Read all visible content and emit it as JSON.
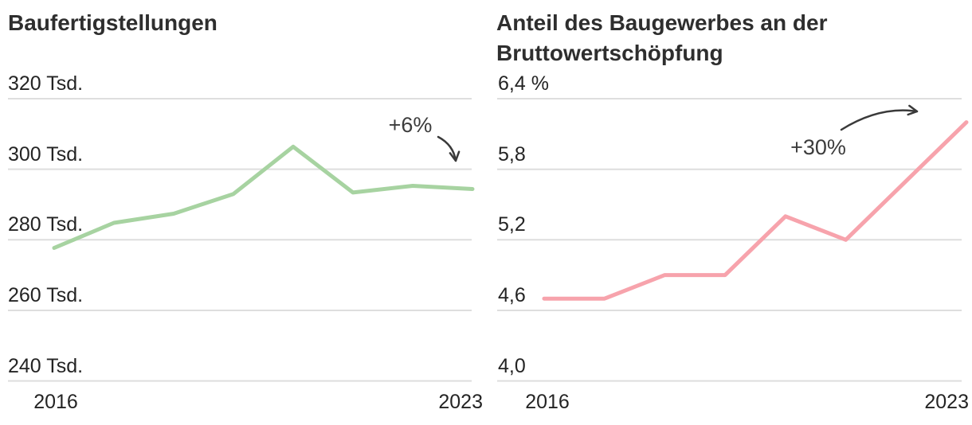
{
  "chart_data": [
    {
      "type": "line",
      "title": "Baufertigstellungen",
      "title_lines": [
        "Baufertigstellungen"
      ],
      "x": [
        2016,
        2017,
        2018,
        2019,
        2020,
        2021,
        2022,
        2023
      ],
      "values": [
        277.7,
        284.8,
        287.4,
        293.0,
        306.4,
        293.4,
        295.3,
        294.4
      ],
      "unit": "Tsd.",
      "ylim": [
        240,
        320
      ],
      "yticks": [
        {
          "value": 320,
          "label": "320 Tsd."
        },
        {
          "value": 300,
          "label": "300 Tsd."
        },
        {
          "value": 280,
          "label": "280 Tsd."
        },
        {
          "value": 260,
          "label": "260 Tsd."
        },
        {
          "value": 240,
          "label": "240 Tsd."
        }
      ],
      "xticks": [
        {
          "value": 2016,
          "label": "2016"
        },
        {
          "value": 2023,
          "label": "2023"
        }
      ],
      "annotation": "+6%",
      "line_color": "#a7d3a1",
      "grid": true,
      "legend": null
    },
    {
      "type": "line",
      "title": "Anteil des Baugewerbes an der Bruttowertschöpfung",
      "title_lines": [
        "Anteil des Baugewerbes an der",
        "Bruttowertschöpfung"
      ],
      "x": [
        2016,
        2017,
        2018,
        2019,
        2020,
        2021,
        2022,
        2023
      ],
      "values": [
        4.7,
        4.7,
        4.9,
        4.9,
        5.4,
        5.2,
        5.7,
        6.2
      ],
      "unit": "%",
      "ylim": [
        4.0,
        6.4
      ],
      "yticks": [
        {
          "value": 6.4,
          "label": "6,4 %"
        },
        {
          "value": 5.8,
          "label": "5,8"
        },
        {
          "value": 5.2,
          "label": "5,2"
        },
        {
          "value": 4.6,
          "label": "4,6"
        },
        {
          "value": 4.0,
          "label": "4,0"
        }
      ],
      "xticks": [
        {
          "value": 2016,
          "label": "2016"
        },
        {
          "value": 2023,
          "label": "2023"
        }
      ],
      "annotation": "+30%",
      "line_color": "#f7a3ac",
      "grid": true,
      "legend": null
    }
  ],
  "colors": {
    "background": "#ffffff",
    "gridline": "#dedede",
    "title_text": "#2e2e2e",
    "tick_text": "#242424",
    "annotation_text": "#3c3c3c",
    "arrow": "#3a3a3a",
    "series_left": "#a7d3a1",
    "series_right": "#f7a3ac"
  }
}
